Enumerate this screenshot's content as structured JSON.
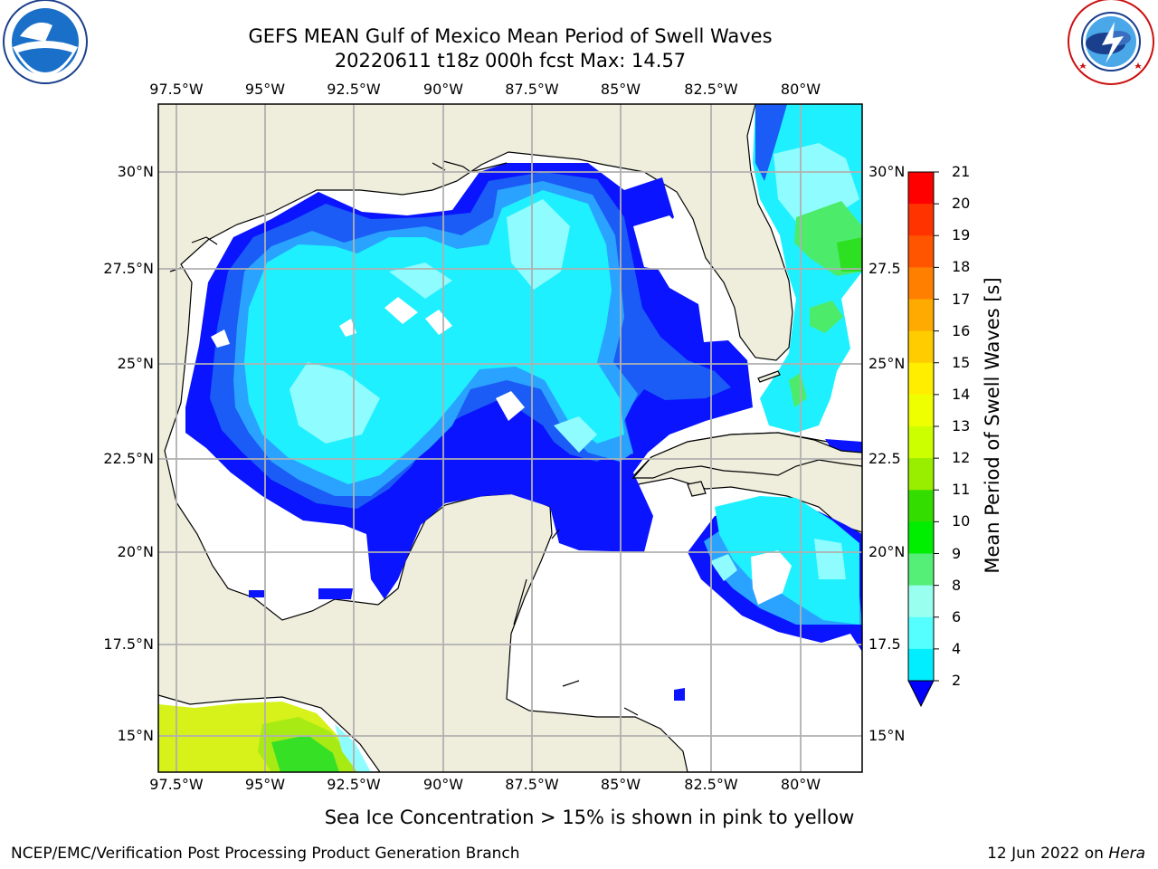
{
  "header": {
    "title_line1": "GEFS MEAN Gulf of Mexico Mean Period of Swell Waves",
    "title_line2": "20220611 t18z 000h fcst   Max: 14.57"
  },
  "logos": {
    "left": "NOAA",
    "right": "NATIONAL WEATHER SERVICE"
  },
  "map": {
    "lon_labels": [
      "97.5°W",
      "95°W",
      "92.5°W",
      "90°W",
      "87.5°W",
      "85°W",
      "82.5°W",
      "80°W"
    ],
    "lat_labels_left": [
      "30°N",
      "27.5°N",
      "25°N",
      "22.5°N",
      "20°N",
      "17.5°N",
      "15°N"
    ],
    "lat_labels_right": [
      "30°N",
      "27.5",
      "25°N",
      "22.5",
      "20°N",
      "17.5",
      "15°N"
    ]
  },
  "colorbar": {
    "title": "Mean Period of Swell Waves [s]",
    "ticks": [
      "21",
      "20",
      "19",
      "18",
      "17",
      "16",
      "15",
      "14",
      "13",
      "12",
      "11",
      "10",
      "9",
      "8",
      "6",
      "4",
      "2"
    ],
    "colors": [
      "#ff0000",
      "#ff3300",
      "#ff5500",
      "#ff8000",
      "#ffaa00",
      "#ffcc00",
      "#ffee00",
      "#f0ff00",
      "#ccff00",
      "#99ee00",
      "#33dd00",
      "#00ee00",
      "#55ee77",
      "#99ffee",
      "#55ffff",
      "#00eeff",
      "#0088ff",
      "#0000ff"
    ]
  },
  "note": "Sea Ice Concentration > 15% is shown in pink to yellow",
  "footer": {
    "left": "NCEP/EMC/Verification Post Processing Product Generation Branch",
    "right_date": "12 Jun 2022 on ",
    "right_machine": "Hera"
  }
}
